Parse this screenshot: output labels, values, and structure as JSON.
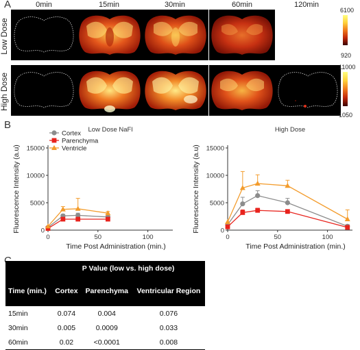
{
  "panel_a": {
    "letter": "A",
    "time_labels": [
      "0min",
      "15min",
      "30min",
      "60min",
      "120min"
    ],
    "row_labels": [
      "Low Dose",
      "High Dose"
    ],
    "low_scale": {
      "max": "6100",
      "min": "920"
    },
    "high_scale": {
      "max": "11000",
      "min": "1050"
    }
  },
  "panel_b": {
    "letter": "B"
  },
  "panel_c": {
    "letter": "C",
    "table_title": "P Value (low vs. high dose)",
    "headers": [
      "Time (min.)",
      "Cortex",
      "Parenchyma",
      "Ventricular Region"
    ],
    "rows": [
      [
        "15min",
        "0.074",
        "0.004",
        "0.076"
      ],
      [
        "30min",
        "0.005",
        "0.0009",
        "0.033"
      ],
      [
        "60min",
        "0.02",
        "<0.0001",
        "0.008"
      ]
    ]
  },
  "chart_data": [
    {
      "type": "line",
      "title": "Low Dose NaFl",
      "xlabel": "Time Post Administration (min.)",
      "ylabel": "Fluorescence Intensity (a.u)",
      "xlim": [
        0,
        125
      ],
      "ylim": [
        0,
        15000
      ],
      "xticks": [
        0,
        50,
        100
      ],
      "yticks": [
        0,
        5000,
        10000,
        15000
      ],
      "legend": "top-left",
      "series": [
        {
          "name": "Cortex",
          "color": "#8c8c8c",
          "marker": "circle",
          "x": [
            0,
            15,
            30,
            60
          ],
          "y": [
            500,
            2600,
            2700,
            2400
          ],
          "err": [
            0,
            300,
            400,
            300
          ]
        },
        {
          "name": "Parenchyma",
          "color": "#e8231d",
          "marker": "square",
          "x": [
            0,
            15,
            30,
            60
          ],
          "y": [
            300,
            2000,
            2000,
            2000
          ],
          "err": [
            0,
            150,
            200,
            200
          ]
        },
        {
          "name": "Ventricle",
          "color": "#f39c2c",
          "marker": "triangle",
          "x": [
            0,
            15,
            30,
            60
          ],
          "y": [
            700,
            3800,
            3900,
            3100
          ],
          "err": [
            0,
            500,
            1900,
            300
          ]
        }
      ]
    },
    {
      "type": "line",
      "title": "High Dose",
      "xlabel": "Time Post Administration (min.)",
      "ylabel": "Fluorescence Intensity (a.u)",
      "xlim": [
        0,
        125
      ],
      "ylim": [
        0,
        15000
      ],
      "xticks": [
        0,
        50,
        100
      ],
      "yticks": [
        0,
        5000,
        10000,
        15000
      ],
      "series": [
        {
          "name": "Cortex",
          "color": "#8c8c8c",
          "marker": "circle",
          "x": [
            0,
            15,
            30,
            60,
            120
          ],
          "y": [
            1000,
            4800,
            6300,
            5000,
            700
          ],
          "err": [
            0,
            1200,
            900,
            800,
            300
          ]
        },
        {
          "name": "Parenchyma",
          "color": "#e8231d",
          "marker": "square",
          "x": [
            0,
            15,
            30,
            60,
            120
          ],
          "y": [
            600,
            3200,
            3600,
            3400,
            500
          ],
          "err": [
            0,
            500,
            400,
            300,
            200
          ]
        },
        {
          "name": "Ventricle",
          "color": "#f39c2c",
          "marker": "triangle",
          "x": [
            0,
            15,
            30,
            60,
            120
          ],
          "y": [
            1500,
            7700,
            8500,
            8100,
            2000
          ],
          "err": [
            0,
            3000,
            1600,
            1000,
            1700
          ]
        }
      ]
    }
  ]
}
